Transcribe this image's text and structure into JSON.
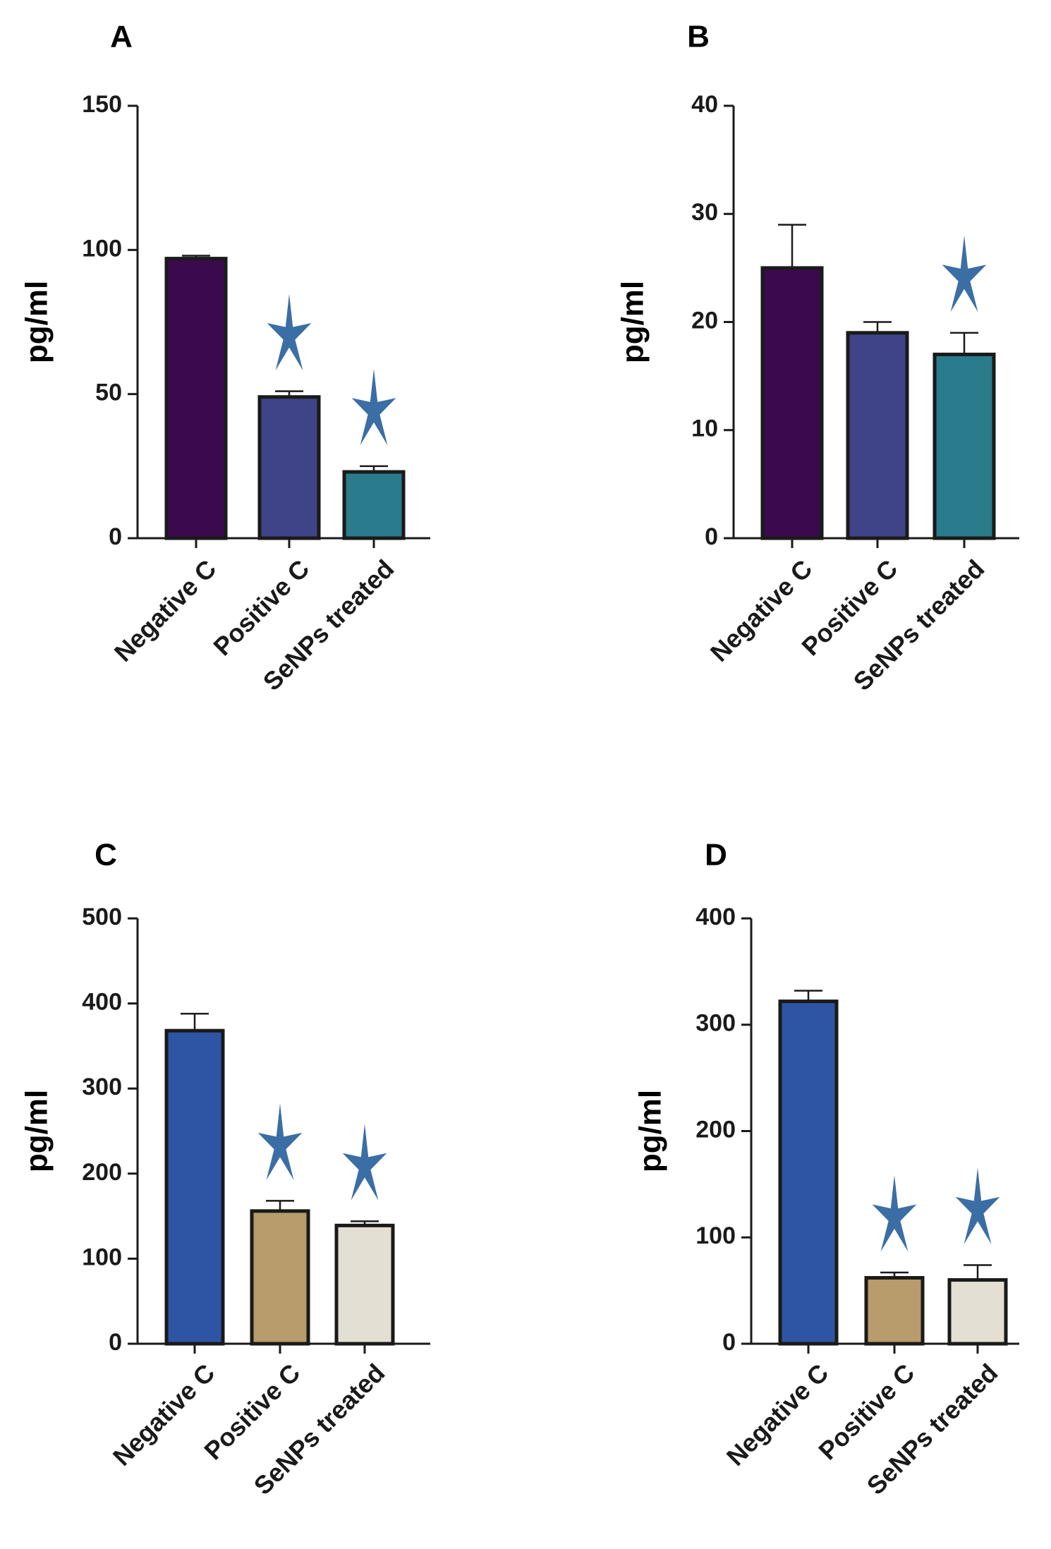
{
  "chart_data": [
    {
      "type": "bar",
      "panel": "A",
      "title": "",
      "ylabel": "pg/ml",
      "xlabel": "",
      "ylim": [
        0,
        150
      ],
      "yticks": [
        0,
        50,
        100,
        150
      ],
      "categories": [
        "Negative C",
        "Positive C",
        "SeNPs treated"
      ],
      "values": [
        97,
        49,
        23
      ],
      "errors": [
        1,
        2,
        2
      ],
      "significant": [
        false,
        true,
        true
      ],
      "colors": [
        "#3b0a4e",
        "#3f4387",
        "#2a7b8b"
      ],
      "grid": false
    },
    {
      "type": "bar",
      "panel": "B",
      "title": "",
      "ylabel": "pg/ml",
      "xlabel": "",
      "ylim": [
        0,
        40
      ],
      "yticks": [
        0,
        10,
        20,
        30,
        40
      ],
      "categories": [
        "Negative C",
        "Positive C",
        "SeNPs treated"
      ],
      "values": [
        25,
        19,
        17
      ],
      "errors": [
        4,
        1,
        2
      ],
      "significant": [
        false,
        false,
        true
      ],
      "colors": [
        "#3b0a4e",
        "#3f4387",
        "#2a7b8b"
      ],
      "grid": false
    },
    {
      "type": "bar",
      "panel": "C",
      "title": "",
      "ylabel": "pg/ml",
      "xlabel": "",
      "ylim": [
        0,
        500
      ],
      "yticks": [
        0,
        100,
        200,
        300,
        400,
        500
      ],
      "categories": [
        "Negative C",
        "Positive C",
        "SeNPs treated"
      ],
      "values": [
        368,
        156,
        139
      ],
      "errors": [
        20,
        12,
        5
      ],
      "significant": [
        false,
        true,
        true
      ],
      "colors": [
        "#2e55a4",
        "#b89c6b",
        "#e3dfd2"
      ],
      "grid": false
    },
    {
      "type": "bar",
      "panel": "D",
      "title": "",
      "ylabel": "pg/ml",
      "xlabel": "",
      "ylim": [
        0,
        400
      ],
      "yticks": [
        0,
        100,
        200,
        300,
        400
      ],
      "categories": [
        "Negative C",
        "Positive C",
        "SeNPs treated"
      ],
      "values": [
        322,
        62,
        60
      ],
      "errors": [
        10,
        5,
        14
      ],
      "significant": [
        false,
        true,
        true
      ],
      "colors": [
        "#2e55a4",
        "#b89c6b",
        "#e3dfd2"
      ],
      "grid": false
    }
  ],
  "style": {
    "star_color": "#3a6ea5",
    "axis_color": "#1a1a1a",
    "bar_edge_color": "#1a1a1a"
  }
}
